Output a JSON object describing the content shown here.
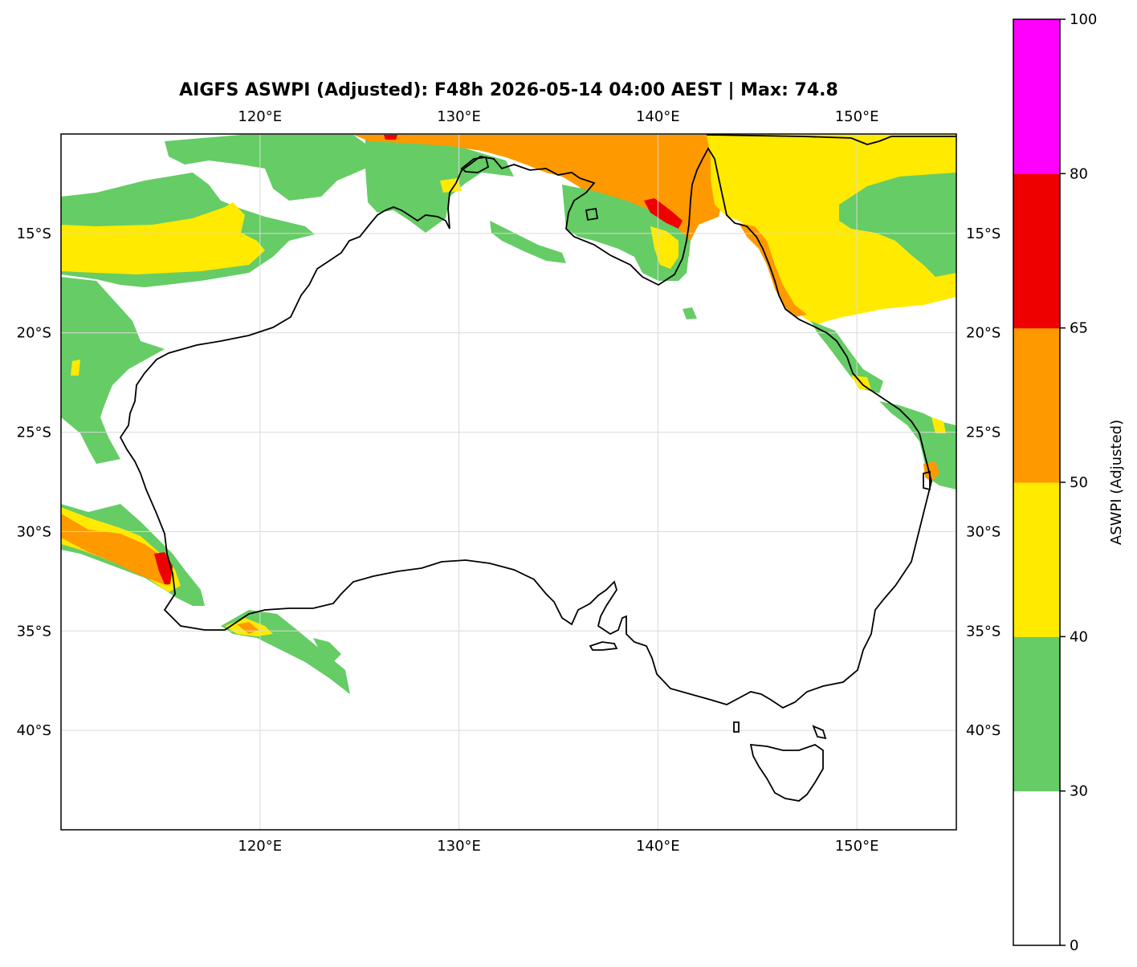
{
  "title": "AIGFS ASWPI (Adjusted): F48h 2026-05-14 04:00 AEST | Max: 74.8",
  "map": {
    "lon_range": [
      110,
      155
    ],
    "lat_range": [
      -45,
      -10
    ],
    "lon_ticks": [
      {
        "value": 120,
        "label": "120°E"
      },
      {
        "value": 130,
        "label": "130°E"
      },
      {
        "value": 140,
        "label": "140°E"
      },
      {
        "value": 150,
        "label": "150°E"
      }
    ],
    "lat_ticks": [
      {
        "value": -15,
        "label": "15°S"
      },
      {
        "value": -20,
        "label": "20°S"
      },
      {
        "value": -25,
        "label": "25°S"
      },
      {
        "value": -30,
        "label": "30°S"
      },
      {
        "value": -35,
        "label": "35°S"
      },
      {
        "value": -40,
        "label": "40°S"
      }
    ],
    "gridlines": true,
    "colors": {
      "coastline": "#000000",
      "grid": "#d9d9d9",
      "frame": "#000000"
    }
  },
  "colorbar": {
    "label": "ASWPI (Adjusted)",
    "levels": [
      {
        "from": 0,
        "to": 30,
        "color": "#ffffff"
      },
      {
        "from": 30,
        "to": 40,
        "color": "#66cc66"
      },
      {
        "from": 40,
        "to": 50,
        "color": "#ffea00"
      },
      {
        "from": 50,
        "to": 65,
        "color": "#ff9900"
      },
      {
        "from": 65,
        "to": 80,
        "color": "#ee0000"
      },
      {
        "from": 80,
        "to": 100,
        "color": "#ff00ff"
      }
    ],
    "ticks": [
      "0",
      "30",
      "40",
      "50",
      "65",
      "80",
      "100"
    ]
  }
}
